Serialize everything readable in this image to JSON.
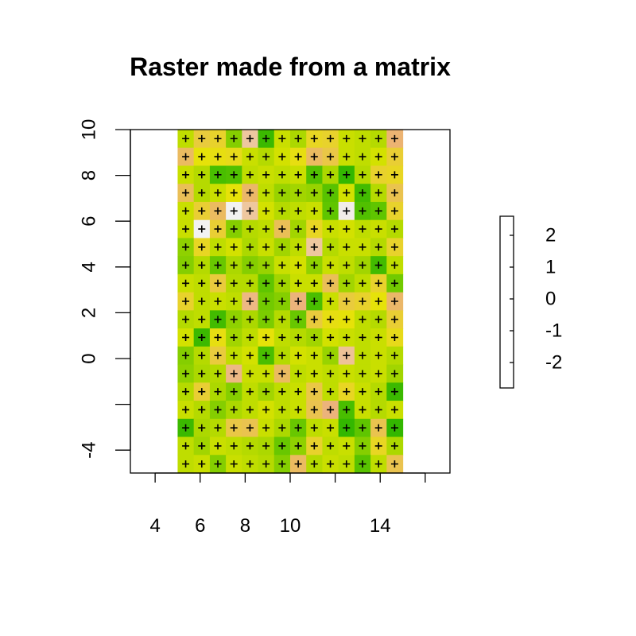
{
  "chart_data": {
    "type": "heatmap",
    "title": "Raster made from a matrix",
    "xlabel": "",
    "ylabel": "",
    "xlim": [
      2.9,
      17.1
    ],
    "ylim": [
      -5,
      10
    ],
    "x_ticks": [
      4,
      6,
      8,
      10,
      12,
      14,
      16
    ],
    "x_tick_labels": [
      "4",
      "6",
      "8",
      "10",
      "",
      "14",
      ""
    ],
    "y_ticks": [
      -4,
      -2,
      0,
      2,
      4,
      6,
      8,
      10
    ],
    "y_tick_labels": [
      "-4",
      "",
      "0",
      "2",
      "4",
      "6",
      "8",
      "10"
    ],
    "cell_x_range": [
      5,
      15
    ],
    "cell_y_range": [
      -5,
      10
    ],
    "points_marked": true,
    "colorbar": {
      "range": [
        -2.8,
        2.6
      ],
      "ticks": [
        2,
        1,
        0,
        -1,
        -2
      ],
      "tick_labels": [
        "2",
        "1",
        "0",
        "-1",
        "-2"
      ],
      "colors": [
        "#f2f2f2",
        "#ecb176",
        "#e6e600",
        "#63c600",
        "#00a600"
      ]
    },
    "rows_top_to_bottom": [
      [
        0.3,
        -0.8,
        -0.6,
        0.9,
        -1.9,
        1.8,
        0.2,
        0.5,
        -0.5,
        -0.6,
        0.2,
        0.3,
        0.4,
        -1.4
      ],
      [
        -1.2,
        -0.2,
        -0.3,
        -0.4,
        0.2,
        0.4,
        0.1,
        -0.3,
        -1.2,
        -0.9,
        0.2,
        0.3,
        0.1,
        -0.7
      ],
      [
        0.2,
        0.4,
        1.6,
        1.5,
        0.3,
        0.2,
        0.3,
        0.2,
        1.5,
        0.5,
        1.9,
        0.4,
        -0.6,
        -0.5
      ],
      [
        -1.1,
        0.4,
        0.2,
        -0.2,
        -1.3,
        0.3,
        0.7,
        0.6,
        0.7,
        1.4,
        0.1,
        1.7,
        0.4,
        -1.0
      ],
      [
        0.2,
        -0.7,
        -1.2,
        -2.8,
        -1.9,
        0.1,
        0.4,
        0.3,
        0.2,
        1.3,
        -2.7,
        1.5,
        1.3,
        -0.6
      ],
      [
        0.2,
        -2.8,
        -0.7,
        0.9,
        0.4,
        0.3,
        -1.1,
        0.6,
        -0.5,
        0.2,
        0.1,
        0.3,
        0.2,
        0.4
      ],
      [
        0.8,
        -0.5,
        0.3,
        0.1,
        0.5,
        0.2,
        0.6,
        0.3,
        -1.9,
        0.4,
        0.2,
        0.2,
        0.4,
        -0.6
      ],
      [
        0.9,
        0.4,
        1.2,
        0.5,
        0.9,
        0.7,
        0.2,
        0.1,
        0.8,
        0.2,
        0.3,
        0.6,
        1.7,
        0.3
      ],
      [
        0.2,
        0.3,
        -0.8,
        0.4,
        0.4,
        1.3,
        0.6,
        0.2,
        0.2,
        -1.1,
        0.6,
        0.3,
        -0.6,
        1.1
      ],
      [
        -0.6,
        0.3,
        0.2,
        0.3,
        -1.6,
        1.1,
        0.9,
        -1.5,
        1.6,
        0.2,
        -0.8,
        -0.6,
        -0.2,
        -1.3
      ],
      [
        0.4,
        0.3,
        1.7,
        0.8,
        0.5,
        1.0,
        0.4,
        1.2,
        -0.8,
        -0.3,
        -0.2,
        0.3,
        0.4,
        -0.7
      ],
      [
        0.1,
        1.8,
        -0.3,
        0.6,
        0.3,
        -0.2,
        0.3,
        0.4,
        0.6,
        0.1,
        0.2,
        0.3,
        0.2,
        -0.4
      ],
      [
        0.9,
        0.4,
        -0.8,
        0.3,
        0.1,
        1.6,
        0.4,
        0.1,
        0.2,
        0.7,
        -1.8,
        0.3,
        0.2,
        0.4
      ],
      [
        0.8,
        0.5,
        0.4,
        -1.6,
        0.2,
        0.2,
        -1.2,
        0.3,
        0.2,
        0.3,
        0.2,
        0.3,
        0.2,
        0.6
      ],
      [
        0.4,
        -0.7,
        0.5,
        0.9,
        0.3,
        0.6,
        0.3,
        0.2,
        -0.9,
        0.3,
        -0.5,
        0.2,
        0.4,
        1.8
      ],
      [
        0.2,
        0.4,
        0.9,
        0.5,
        0.3,
        0.1,
        0.3,
        0.2,
        -1.0,
        -1.5,
        1.6,
        0.2,
        0.4,
        0.2
      ],
      [
        1.8,
        0.5,
        0.4,
        -0.9,
        -1.0,
        0.2,
        0.5,
        1.2,
        0.3,
        0.2,
        1.9,
        1.3,
        -1.0,
        1.9
      ],
      [
        0.3,
        0.6,
        0.2,
        0.3,
        0.4,
        0.5,
        1.2,
        0.8,
        -0.6,
        0.3,
        0.2,
        0.9,
        -0.5,
        0.5
      ],
      [
        0.3,
        0.2,
        0.9,
        0.2,
        0.3,
        0.4,
        0.9,
        -1.2,
        0.4,
        0.2,
        0.3,
        1.4,
        0.3,
        -1.0
      ]
    ]
  }
}
